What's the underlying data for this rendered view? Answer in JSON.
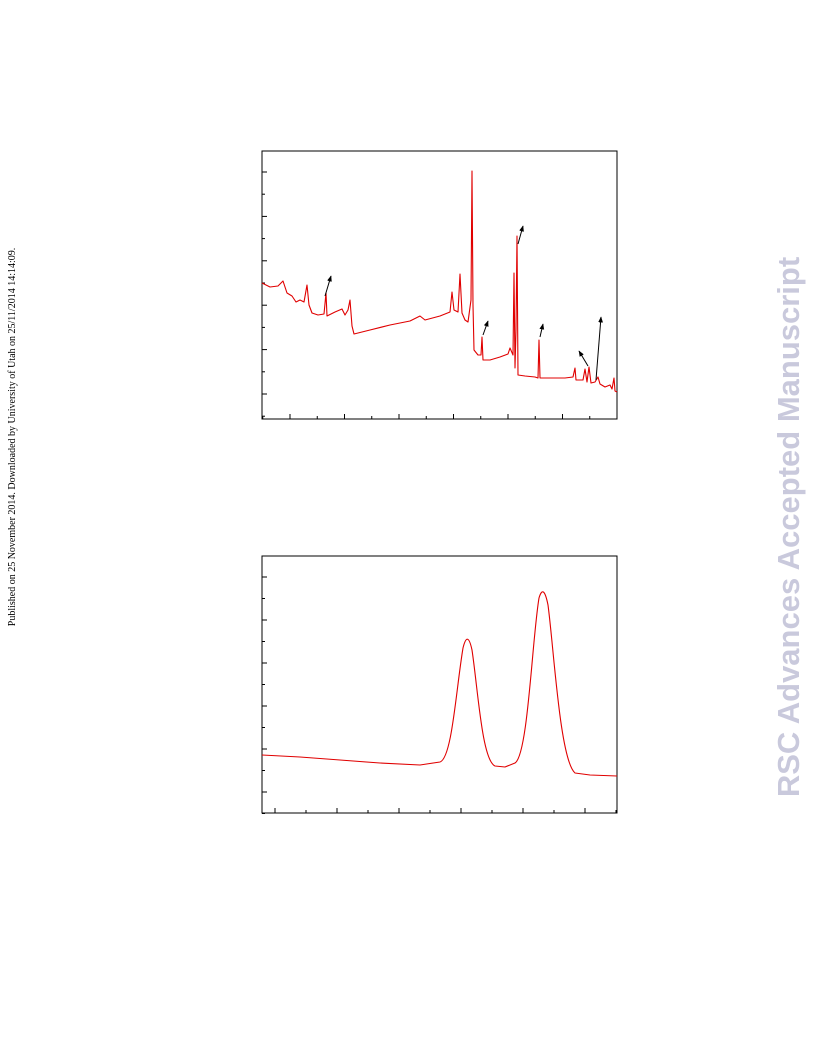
{
  "sidebar": {
    "text": "Published on 25 November 2014. Downloaded by University of Utah on 25/11/2014 14:14:09."
  },
  "watermark": {
    "text": "RSC Advances Accepted Manuscript"
  }
}
